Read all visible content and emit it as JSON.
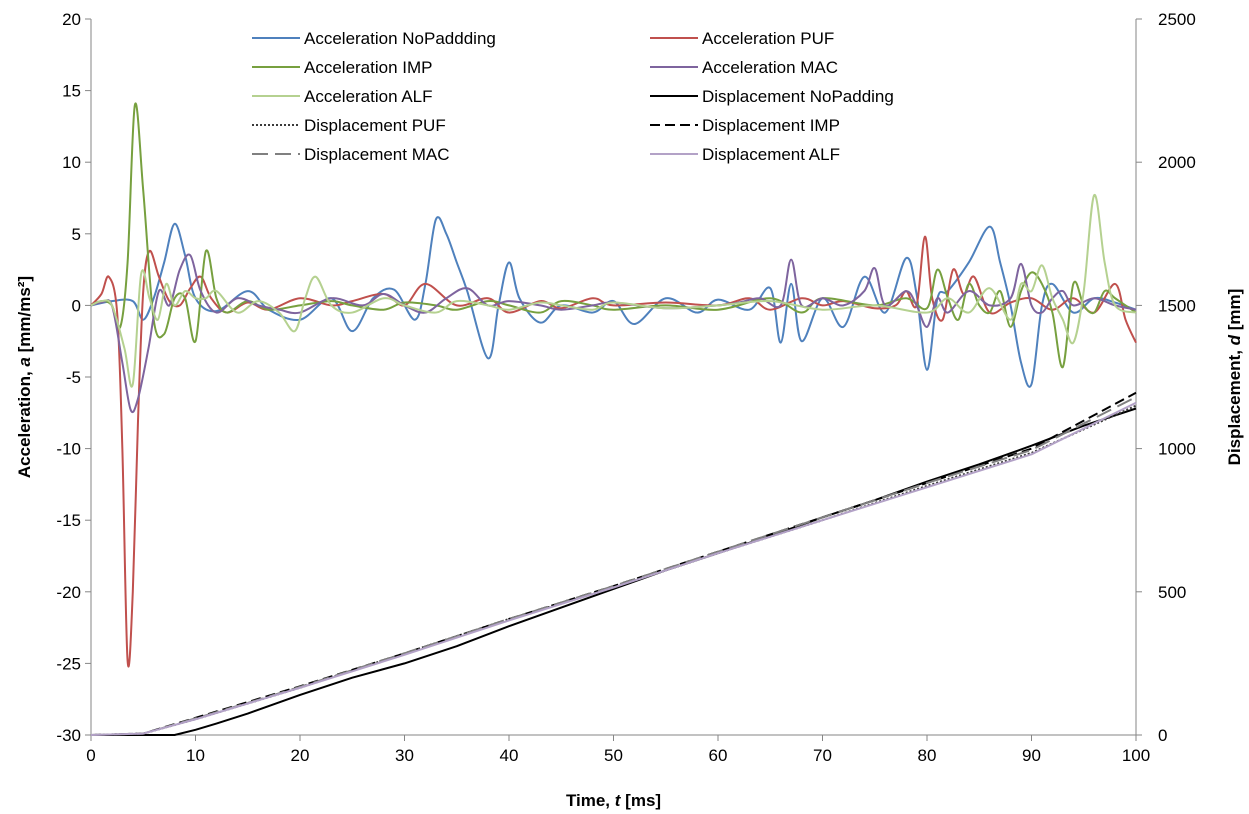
{
  "chart_data": {
    "type": "line",
    "x_axis": {
      "label_prefix": "Time, ",
      "label_var": "t",
      "label_suffix": " [ms]",
      "range": [
        0,
        100
      ],
      "ticks": [
        "0",
        "10",
        "20",
        "30",
        "40",
        "50",
        "60",
        "70",
        "80",
        "90",
        "100"
      ]
    },
    "y_axis_left": {
      "label_prefix": "Acceleration, ",
      "label_var": "a",
      "label_suffix": " [mm/ms²]",
      "range": [
        -30,
        20
      ],
      "ticks": [
        "-30",
        "-25",
        "-20",
        "-15",
        "-10",
        "-5",
        "0",
        "5",
        "10",
        "15",
        "20"
      ]
    },
    "y_axis_right": {
      "label_prefix": "Displacement, ",
      "label_var": "d",
      "label_suffix": " [mm]",
      "range": [
        0,
        2500
      ],
      "ticks": [
        "0",
        "500",
        "1000",
        "1500",
        "2000",
        "2500"
      ]
    },
    "grid": false,
    "legend_position": "top",
    "series": [
      {
        "name": "Acceleration NoPaddding",
        "axis": "left",
        "color": "#4f81bd",
        "dash": "solid",
        "x": [
          0,
          2,
          4,
          5,
          6,
          7,
          8,
          9,
          10,
          12,
          15,
          17,
          20,
          23,
          25,
          27,
          29,
          31,
          32,
          33,
          34,
          35,
          36,
          38,
          39,
          40,
          41,
          43,
          45,
          48,
          50,
          52,
          55,
          58,
          60,
          63,
          65,
          66,
          67,
          68,
          70,
          72,
          74,
          76,
          78,
          79,
          80,
          81,
          82,
          84,
          86,
          87,
          88,
          89,
          90,
          91,
          92,
          94,
          96,
          98,
          100
        ],
        "y": [
          0,
          0.3,
          0.3,
          -1.0,
          0.5,
          3.0,
          5.7,
          3.5,
          0.5,
          -0.4,
          1.0,
          -0.3,
          -1.0,
          0.5,
          -1.8,
          0.5,
          1.1,
          -1.0,
          1.5,
          6.0,
          5.0,
          3.0,
          1.0,
          -3.7,
          0.0,
          3.0,
          0.5,
          -1.2,
          0.0,
          -0.5,
          0.3,
          -1.3,
          0.5,
          -0.5,
          0.4,
          -0.3,
          1.2,
          -2.6,
          1.5,
          -2.5,
          0.5,
          -1.5,
          2.0,
          -0.5,
          3.3,
          0.8,
          -4.5,
          0.5,
          1.0,
          3.0,
          5.5,
          3.0,
          0.0,
          -4.0,
          -5.5,
          0.0,
          1.5,
          -0.5,
          0.5,
          0.2,
          -0.3
        ]
      },
      {
        "name": "Acceleration PUF",
        "axis": "left",
        "color": "#c0504d",
        "dash": "solid",
        "x": [
          0,
          1,
          1.7,
          2.5,
          3.0,
          3.5,
          4.0,
          4.5,
          5.0,
          5.6,
          6.5,
          7.5,
          8.5,
          9.5,
          10.5,
          11.5,
          13,
          15,
          17,
          20,
          23,
          25,
          28,
          30,
          32,
          35,
          38,
          40,
          43,
          45,
          48,
          50,
          55,
          60,
          63,
          65,
          68,
          70,
          72,
          75,
          77,
          78,
          79,
          79.8,
          80.5,
          81.5,
          82.5,
          83.5,
          84.5,
          86,
          88,
          90,
          92,
          94,
          96,
          98,
          99,
          100
        ],
        "y": [
          0,
          0.8,
          2.0,
          -0.5,
          -10.0,
          -24.8,
          -20.0,
          -8.0,
          1.0,
          3.8,
          2.0,
          0.3,
          0.0,
          1.2,
          2.0,
          0.5,
          -0.5,
          0.2,
          -0.3,
          0.5,
          0.0,
          0.3,
          0.8,
          0.0,
          1.5,
          0.0,
          0.5,
          -0.5,
          0.3,
          -0.2,
          0.5,
          0.0,
          0.2,
          0.0,
          0.5,
          -0.3,
          0.5,
          0.0,
          0.3,
          -0.2,
          0.0,
          1.0,
          0.0,
          4.8,
          0.5,
          -1.0,
          2.5,
          0.8,
          2.0,
          -0.5,
          0.2,
          0.5,
          -0.3,
          0.5,
          -0.5,
          1.5,
          -1.0,
          -2.6
        ]
      },
      {
        "name": "Acceleration IMP",
        "axis": "left",
        "color": "#77a03f",
        "dash": "solid",
        "x": [
          0,
          1,
          2,
          2.8,
          3.5,
          4.2,
          5.0,
          6.0,
          7.0,
          8.0,
          9.0,
          10.0,
          11.0,
          12.0,
          13.0,
          15,
          17,
          20,
          23,
          25,
          28,
          30,
          33,
          35,
          38,
          40,
          43,
          45,
          48,
          50,
          55,
          60,
          65,
          68,
          70,
          75,
          78,
          80,
          81,
          82,
          83,
          84,
          85,
          86,
          87,
          88,
          89,
          90,
          91,
          92,
          93,
          94,
          95,
          96,
          97,
          98,
          100
        ],
        "y": [
          0,
          0.3,
          0.0,
          -1.5,
          3.0,
          14.0,
          8.0,
          -1.0,
          -2.0,
          0.5,
          0.5,
          -2.5,
          3.8,
          0.5,
          -0.5,
          0.3,
          -0.3,
          0.0,
          0.3,
          0.0,
          -0.3,
          0.2,
          0.0,
          -0.3,
          0.3,
          0.0,
          -0.5,
          0.3,
          0.0,
          -0.3,
          0.0,
          -0.3,
          0.5,
          -0.5,
          0.5,
          0.0,
          0.5,
          -0.2,
          2.5,
          0.5,
          -1.0,
          1.5,
          0.0,
          -0.5,
          1.0,
          -1.5,
          1.0,
          2.3,
          1.5,
          -0.5,
          -4.3,
          1.5,
          0.0,
          -0.5,
          1.0,
          0.5,
          -0.5
        ]
      },
      {
        "name": "Acceleration MAC",
        "axis": "left",
        "color": "#7e649e",
        "dash": "solid",
        "x": [
          0,
          1,
          2,
          3,
          3.8,
          4.5,
          5.5,
          6.5,
          7.5,
          8.5,
          9.5,
          10.5,
          12,
          14,
          16,
          18,
          20,
          23,
          26,
          28,
          30,
          32,
          34,
          36,
          38,
          40,
          43,
          45,
          48,
          50,
          55,
          60,
          62,
          64,
          66,
          67,
          68,
          70,
          72,
          74,
          75,
          76,
          78,
          79,
          80,
          81,
          82,
          84,
          86,
          88,
          89,
          90,
          91,
          92,
          93,
          94,
          96,
          98,
          100
        ],
        "y": [
          0,
          0.2,
          0.0,
          -4.0,
          -7.3,
          -6.5,
          -3.0,
          1.0,
          0.0,
          2.5,
          3.5,
          1.0,
          -0.5,
          0.5,
          0.0,
          -0.3,
          -0.5,
          0.5,
          0.0,
          0.8,
          0.0,
          -0.5,
          0.5,
          1.2,
          0.0,
          0.3,
          0.0,
          -0.3,
          0.0,
          0.2,
          -0.2,
          0.0,
          0.2,
          0.5,
          0.0,
          3.2,
          0.0,
          0.5,
          0.0,
          1.0,
          2.6,
          0.0,
          1.0,
          0.0,
          -1.5,
          0.5,
          -0.5,
          1.0,
          0.0,
          0.5,
          2.9,
          0.0,
          -0.5,
          0.5,
          1.0,
          0.0,
          0.5,
          0.0,
          -0.3
        ]
      },
      {
        "name": "Acceleration ALF",
        "axis": "left",
        "color": "#b5d190",
        "dash": "solid",
        "x": [
          0,
          1,
          2,
          3.2,
          4.0,
          4.8,
          5.6,
          6.4,
          7.2,
          8.0,
          9.0,
          10.0,
          11.0,
          12.0,
          14,
          16,
          18,
          19.5,
          20.5,
          21.5,
          23,
          25,
          28,
          30,
          33,
          35,
          38,
          40,
          43,
          45,
          48,
          50,
          55,
          60,
          65,
          70,
          75,
          80,
          82,
          84,
          86,
          88,
          89,
          90,
          91,
          92,
          93,
          94,
          95,
          96,
          97,
          98,
          100
        ],
        "y": [
          0,
          0.3,
          0.0,
          -3.0,
          -5.5,
          2.2,
          0.5,
          -1.0,
          1.5,
          0.0,
          1.0,
          0.5,
          0.5,
          1.0,
          -0.5,
          0.3,
          -0.5,
          -1.8,
          0.5,
          2.0,
          0.0,
          -0.5,
          0.5,
          0.0,
          -0.5,
          0.3,
          0.0,
          -0.3,
          0.2,
          0.0,
          -0.3,
          0.2,
          -0.2,
          0.0,
          0.3,
          -0.3,
          0.0,
          -0.5,
          0.5,
          -0.5,
          1.2,
          -1.0,
          1.5,
          1.0,
          2.8,
          0.5,
          -1.0,
          -2.6,
          1.0,
          7.7,
          3.0,
          0.0,
          -0.5
        ]
      },
      {
        "name": "Displacement NoPadding",
        "axis": "right",
        "color": "#000000",
        "dash": "solid",
        "x": [
          0,
          5,
          6,
          8,
          10,
          12,
          15,
          20,
          25,
          30,
          35,
          40,
          45,
          50,
          55,
          60,
          65,
          70,
          75,
          80,
          85,
          90,
          95,
          100
        ],
        "y": [
          0,
          0,
          0,
          0,
          18,
          40,
          75,
          140,
          200,
          250,
          310,
          380,
          445,
          510,
          575,
          635,
          695,
          760,
          820,
          885,
          945,
          1010,
          1080,
          1140
        ]
      },
      {
        "name": "Displacement PUF",
        "axis": "right",
        "color": "#3a3a3a",
        "dash": "dot",
        "x": [
          0,
          5,
          10,
          15,
          20,
          30,
          40,
          50,
          60,
          70,
          80,
          90,
          100
        ],
        "y": [
          0,
          5,
          55,
          110,
          165,
          285,
          405,
          515,
          635,
          750,
          870,
          985,
          1150
        ]
      },
      {
        "name": "Displacement IMP",
        "axis": "right",
        "color": "#000000",
        "dash": "dash",
        "x": [
          0,
          5,
          10,
          15,
          20,
          30,
          40,
          50,
          60,
          70,
          80,
          90,
          100
        ],
        "y": [
          0,
          5,
          60,
          115,
          170,
          285,
          405,
          520,
          640,
          760,
          880,
          1000,
          1195
        ]
      },
      {
        "name": "Displacement MAC",
        "axis": "right",
        "color": "#808080",
        "dash": "longdash",
        "x": [
          0,
          5,
          10,
          15,
          20,
          30,
          40,
          50,
          60,
          70,
          80,
          90,
          100
        ],
        "y": [
          0,
          5,
          58,
          112,
          168,
          285,
          405,
          520,
          640,
          760,
          880,
          995,
          1180
        ]
      },
      {
        "name": "Displacement ALF",
        "axis": "right",
        "color": "#b3a2c7",
        "dash": "solid",
        "x": [
          0,
          5,
          10,
          15,
          20,
          30,
          40,
          50,
          60,
          70,
          80,
          90,
          100
        ],
        "y": [
          0,
          5,
          55,
          110,
          165,
          280,
          400,
          515,
          635,
          750,
          865,
          980,
          1160
        ]
      }
    ]
  }
}
